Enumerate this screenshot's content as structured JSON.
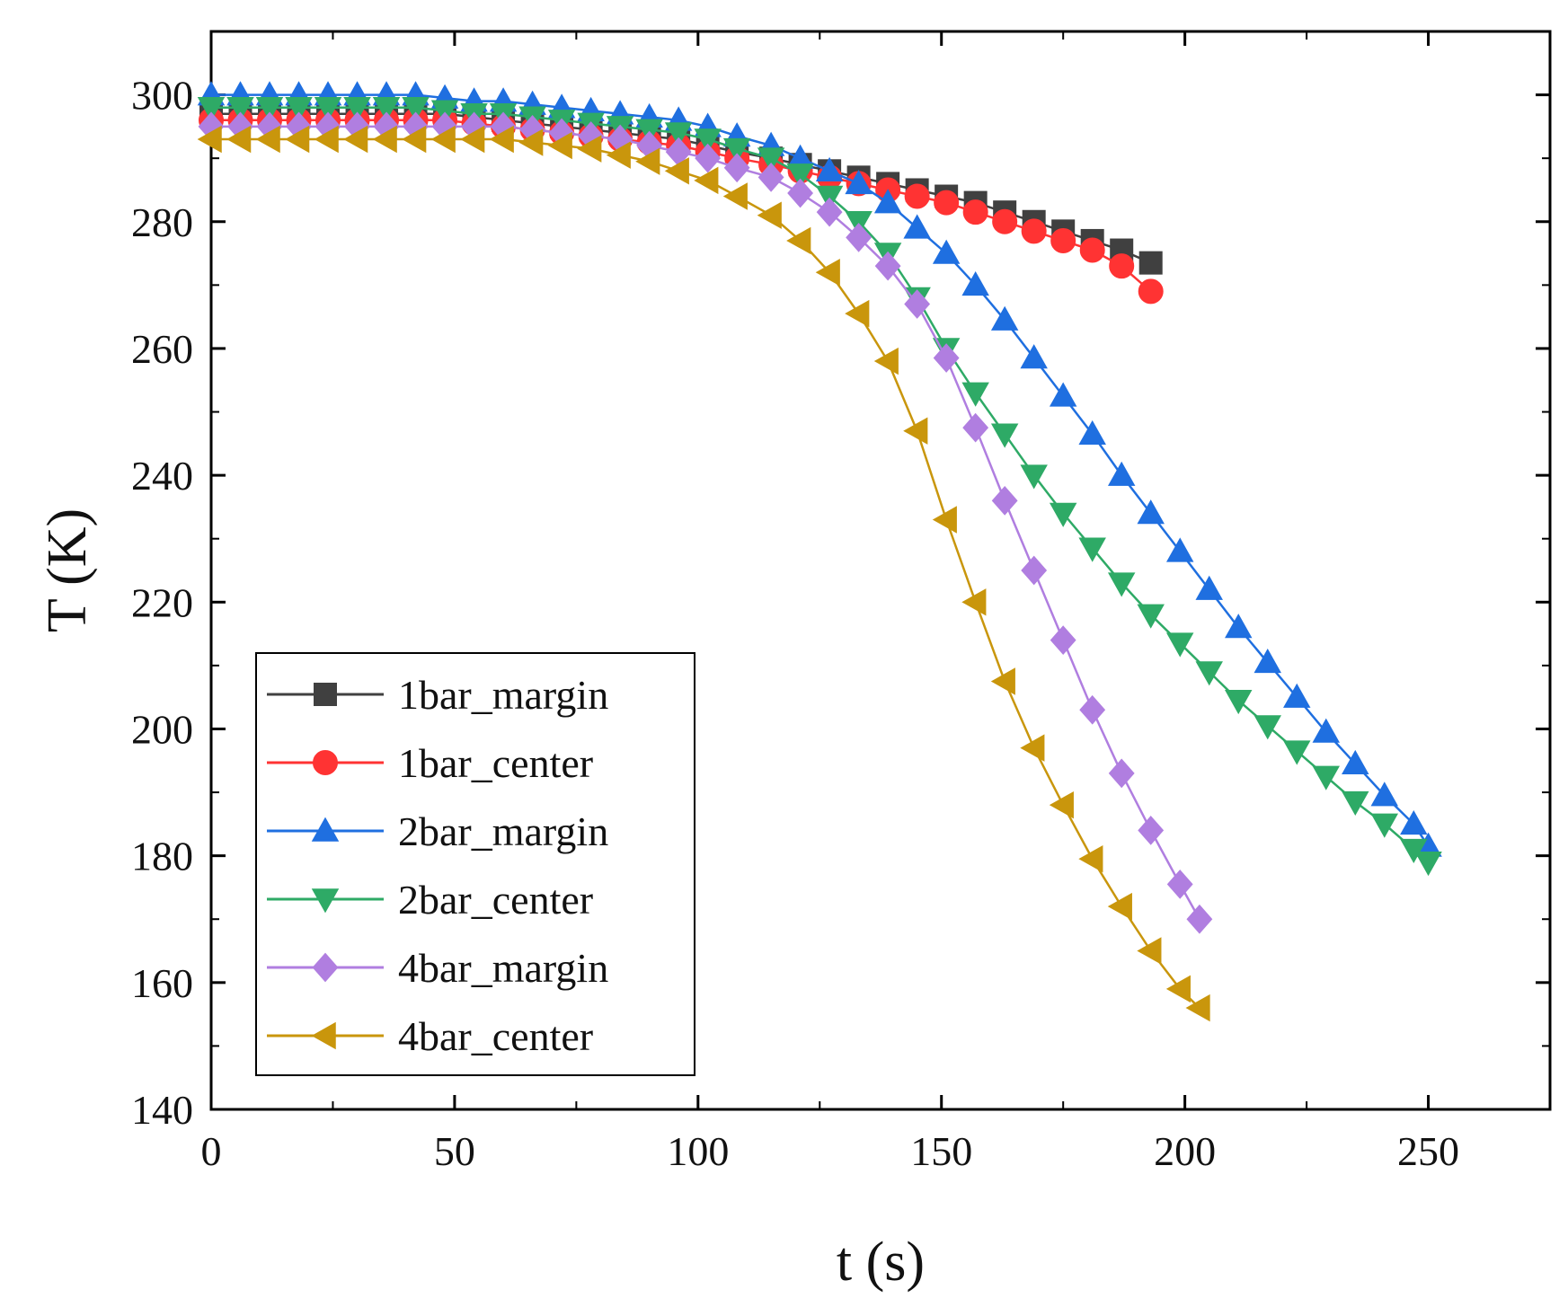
{
  "chart_data": {
    "type": "line",
    "title": "",
    "xlabel": "t (s)",
    "ylabel": "T (K)",
    "xlim": [
      0,
      275
    ],
    "ylim": [
      140,
      310
    ],
    "xticks": [
      0,
      50,
      100,
      150,
      200,
      250
    ],
    "xtick_labels": [
      "0",
      "50",
      "100",
      "150",
      "200",
      "250"
    ],
    "yticks": [
      140,
      160,
      180,
      200,
      220,
      240,
      260,
      280,
      300
    ],
    "ytick_labels": [
      "140",
      "160",
      "180",
      "200",
      "220",
      "240",
      "260",
      "280",
      "300"
    ],
    "grid": false,
    "legend_position": "lower-left",
    "series": [
      {
        "name": "1bar_margin",
        "color": "#404040",
        "marker": "square",
        "x": [
          0,
          6,
          12,
          18,
          24,
          30,
          36,
          42,
          48,
          54,
          60,
          66,
          72,
          78,
          84,
          90,
          96,
          102,
          108,
          115,
          121,
          127,
          133,
          139,
          145,
          151,
          157,
          163,
          169,
          175,
          181,
          187,
          193
        ],
        "y": [
          297,
          297,
          297,
          297,
          297,
          297,
          297,
          297,
          297,
          296.5,
          296,
          295.5,
          295,
          294.5,
          294,
          293.5,
          293,
          292,
          291,
          290,
          289,
          288,
          287,
          286,
          285,
          284,
          283,
          281.5,
          280,
          278.5,
          277,
          275.5,
          273.5
        ]
      },
      {
        "name": "1bar_center",
        "color": "#ff3333",
        "marker": "circle",
        "x": [
          0,
          6,
          12,
          18,
          24,
          30,
          36,
          42,
          48,
          54,
          60,
          66,
          72,
          78,
          84,
          90,
          96,
          102,
          108,
          115,
          121,
          127,
          133,
          139,
          145,
          151,
          157,
          163,
          169,
          175,
          181,
          187,
          193
        ],
        "y": [
          296,
          296,
          296,
          296,
          296,
          296,
          296,
          296,
          296,
          295.5,
          295,
          294.5,
          294,
          293.5,
          293,
          292.5,
          292,
          291,
          290,
          289,
          288,
          287,
          286,
          285,
          284,
          283,
          281.5,
          280,
          278.5,
          277,
          275.5,
          273,
          269
        ]
      },
      {
        "name": "2bar_margin",
        "color": "#1f6fe0",
        "marker": "triangle-up",
        "x": [
          0,
          6,
          12,
          18,
          24,
          30,
          36,
          42,
          48,
          54,
          60,
          66,
          72,
          78,
          84,
          90,
          96,
          102,
          108,
          115,
          121,
          127,
          133,
          139,
          145,
          151,
          157,
          163,
          169,
          175,
          181,
          187,
          193,
          199,
          205,
          211,
          217,
          223,
          229,
          235,
          241,
          247,
          250
        ],
        "y": [
          300,
          300,
          300,
          300,
          300,
          300,
          300,
          300,
          299.5,
          299,
          299,
          298.5,
          298,
          297.5,
          297,
          296.5,
          296,
          295,
          293.5,
          292,
          290,
          288,
          286,
          283,
          279,
          275,
          270,
          264.5,
          258.5,
          252.5,
          246.5,
          240,
          234,
          228,
          222,
          216,
          210.5,
          205,
          199.5,
          194.5,
          189.5,
          185,
          181.5
        ]
      },
      {
        "name": "2bar_center",
        "color": "#2eaa66",
        "marker": "triangle-down",
        "x": [
          0,
          6,
          12,
          18,
          24,
          30,
          36,
          42,
          48,
          54,
          60,
          66,
          72,
          78,
          84,
          90,
          96,
          102,
          108,
          115,
          121,
          127,
          133,
          139,
          145,
          151,
          157,
          163,
          169,
          175,
          181,
          187,
          193,
          199,
          205,
          211,
          217,
          223,
          229,
          235,
          241,
          247,
          250
        ],
        "y": [
          298,
          298,
          298,
          298,
          298,
          298,
          298,
          298,
          297.5,
          297,
          297,
          296.5,
          296,
          295.5,
          295,
          294.5,
          294,
          293,
          291.5,
          290,
          287.5,
          284,
          280,
          275,
          268,
          260,
          253,
          246.5,
          240,
          234,
          228.5,
          223,
          218,
          213.5,
          209,
          204.5,
          200.5,
          196.5,
          192.5,
          188.5,
          185,
          181,
          179
        ]
      },
      {
        "name": "4bar_margin",
        "color": "#b07ee0",
        "marker": "diamond",
        "x": [
          0,
          6,
          12,
          18,
          24,
          30,
          36,
          42,
          48,
          54,
          60,
          66,
          72,
          78,
          84,
          90,
          96,
          102,
          108,
          115,
          121,
          127,
          133,
          139,
          145,
          151,
          157,
          163,
          169,
          175,
          181,
          187,
          193,
          199,
          203
        ],
        "y": [
          295,
          295,
          295,
          295,
          295,
          295,
          295,
          295,
          295,
          295,
          295,
          294.5,
          294,
          293.5,
          293,
          292,
          291,
          290,
          288.5,
          287,
          284.5,
          281.5,
          277.5,
          273,
          267,
          258.5,
          247.5,
          236,
          225,
          214,
          203,
          193,
          184,
          175.5,
          170
        ]
      },
      {
        "name": "4bar_center",
        "color": "#c9960c",
        "marker": "triangle-left",
        "x": [
          0,
          6,
          12,
          18,
          24,
          30,
          36,
          42,
          48,
          54,
          60,
          66,
          72,
          78,
          84,
          90,
          96,
          102,
          108,
          115,
          121,
          127,
          133,
          139,
          145,
          151,
          157,
          163,
          169,
          175,
          181,
          187,
          193,
          199,
          203
        ],
        "y": [
          293,
          293,
          293,
          293,
          293,
          293,
          293,
          293,
          293,
          293,
          293,
          292.5,
          292,
          291.5,
          290.5,
          289.5,
          288,
          286.5,
          284,
          281,
          277,
          272,
          265.5,
          258,
          247,
          233,
          220,
          207.5,
          197,
          188,
          179.5,
          172,
          165,
          159,
          156
        ]
      }
    ]
  }
}
